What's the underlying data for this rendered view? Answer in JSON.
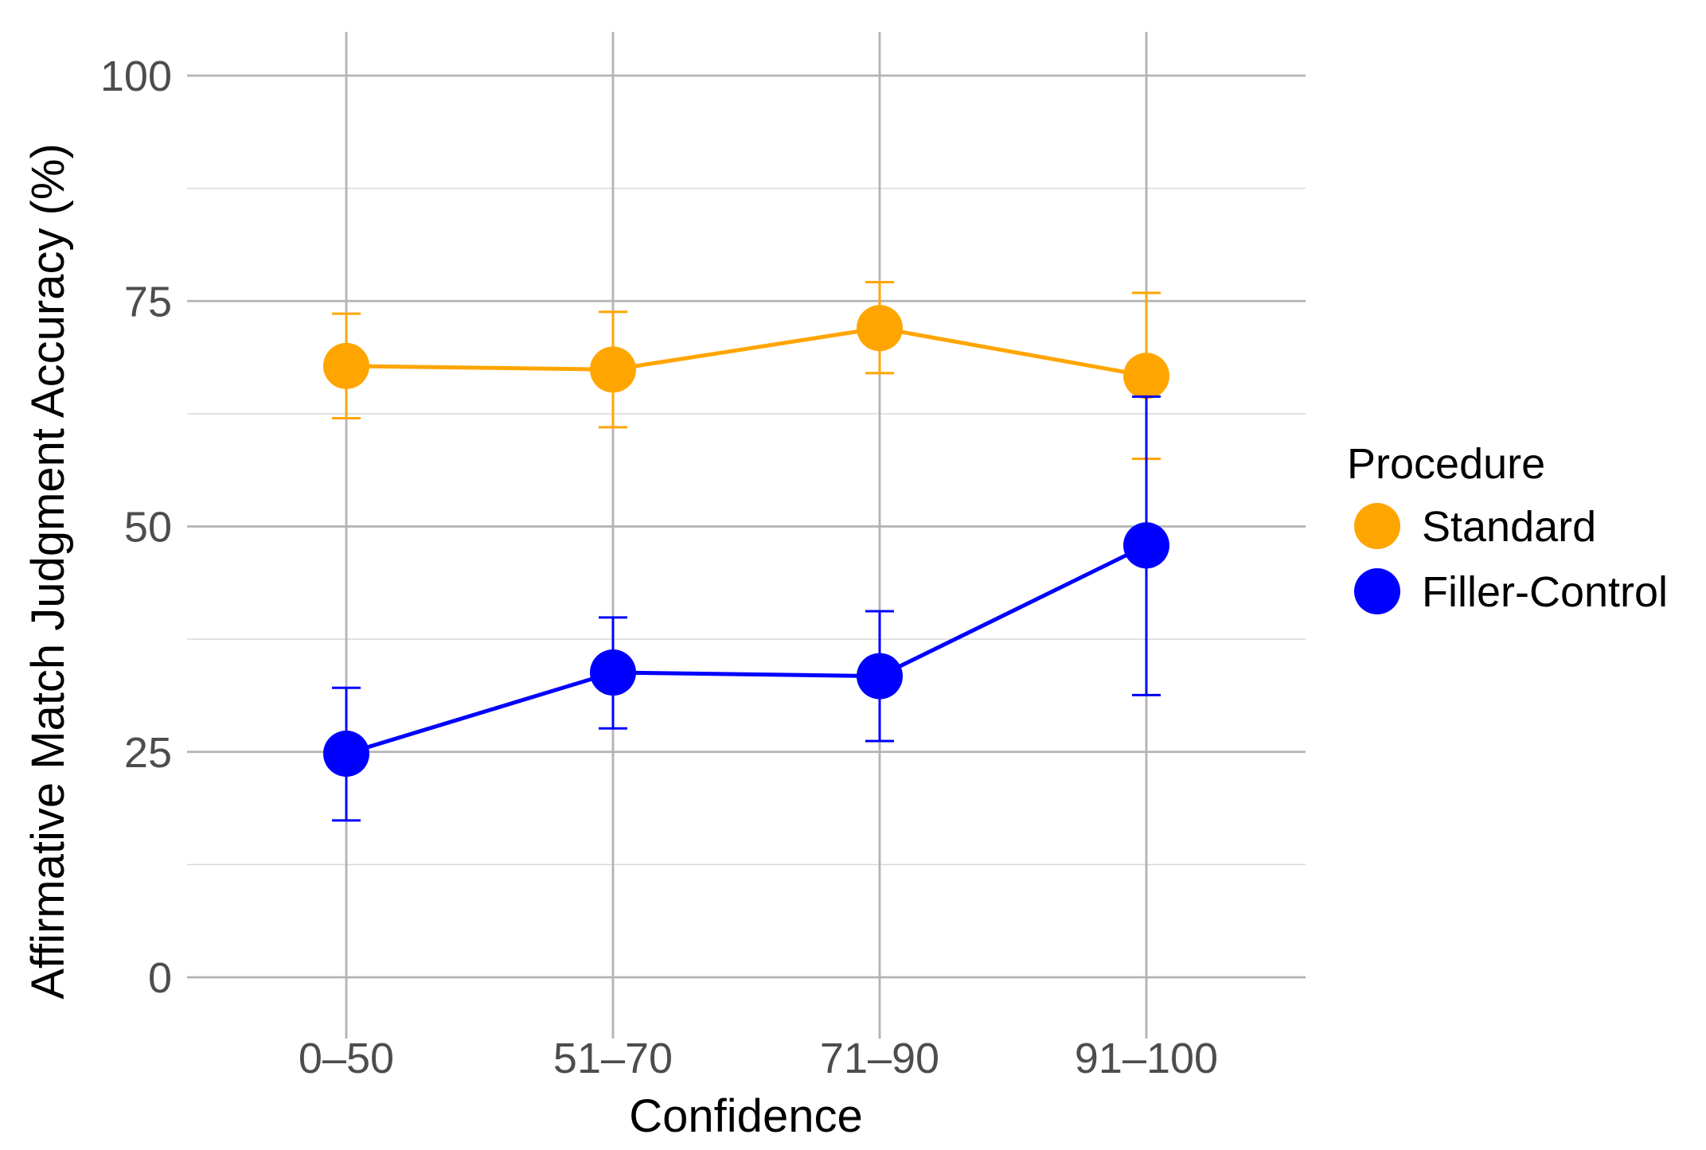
{
  "chart_data": {
    "type": "line",
    "title": "",
    "xlabel": "Confidence",
    "ylabel": "Affirmative Match Judgment Accuracy (%)",
    "categories": [
      "0–50",
      "51–70",
      "71–90",
      "91–100"
    ],
    "ylim": [
      0,
      100
    ],
    "yticks": [
      0,
      25,
      50,
      75,
      100
    ],
    "yminor": [
      12.5,
      37.5,
      62.5,
      87.5
    ],
    "grid": true,
    "legend_title": "Procedure",
    "legend_position": "right",
    "series": [
      {
        "name": "Standard",
        "color": "#FFA500",
        "values": [
          67.8,
          67.4,
          72.0,
          66.7
        ],
        "err_low": [
          62.0,
          61.0,
          67.0,
          57.5
        ],
        "err_high": [
          73.6,
          73.8,
          77.1,
          75.9
        ]
      },
      {
        "name": "Filler-Control",
        "color": "#0000FF",
        "values": [
          24.8,
          33.8,
          33.4,
          47.9
        ],
        "err_low": [
          17.4,
          27.6,
          26.2,
          31.3
        ],
        "err_high": [
          32.1,
          39.9,
          40.6,
          64.4
        ]
      }
    ]
  }
}
